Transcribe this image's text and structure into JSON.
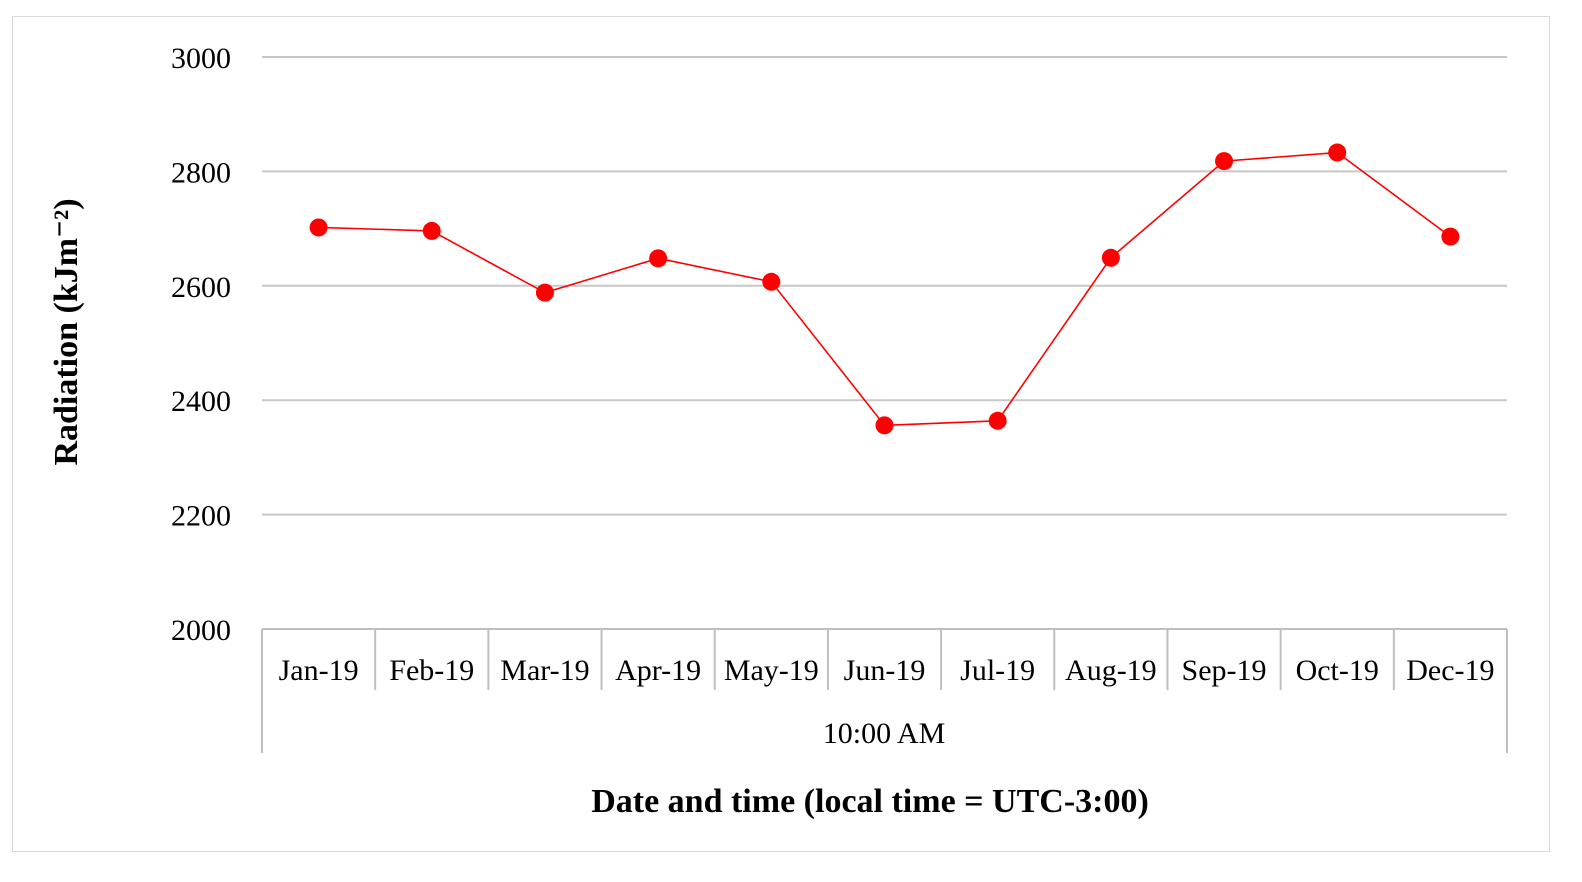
{
  "chart_data": {
    "type": "line",
    "title": "",
    "xlabel": "Date and time (local time = UTC-3:00)",
    "ylabel": "Radiation (kJm⁻²)",
    "ylim": [
      2000,
      3000
    ],
    "yticks": [
      2000,
      2200,
      2400,
      2600,
      2800,
      3000
    ],
    "grid": true,
    "legend": "none",
    "categories": [
      "Jan-19",
      "Feb-19",
      "Mar-19",
      "Apr-19",
      "May-19",
      "Jun-19",
      "Jul-19",
      "Aug-19",
      "Sep-19",
      "Oct-19",
      "Dec-19"
    ],
    "group_label": "10:00 AM",
    "series": [
      {
        "values": [
          2702,
          2696,
          2588,
          2648,
          2607,
          2356,
          2364,
          2649,
          2818,
          2833,
          2686
        ],
        "color": "#ff0000"
      }
    ]
  }
}
